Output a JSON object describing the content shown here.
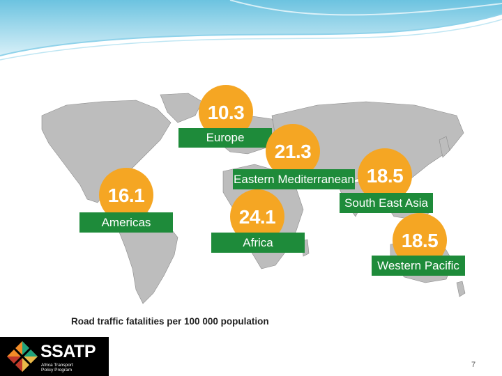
{
  "map": {
    "regions": [
      {
        "name": "Europe",
        "value": "10.3"
      },
      {
        "name": "Eastern Mediterranean",
        "value": "21.3"
      },
      {
        "name": "South East Asia",
        "value": "18.5"
      },
      {
        "name": "Americas",
        "value": "16.1"
      },
      {
        "name": "Africa",
        "value": "24.1"
      },
      {
        "name": "Western Pacific",
        "value": "18.5"
      }
    ],
    "caption": "Road traffic fatalities per 100 000 population",
    "colors": {
      "bubble": "#f5a623",
      "label": "#1e8b3a",
      "land": "#bdbdbd"
    }
  },
  "logo": {
    "name": "SSATP",
    "subtitle_line1": "Africa Transport",
    "subtitle_line2": "Policy Program"
  },
  "slide": {
    "page_number": "7"
  }
}
